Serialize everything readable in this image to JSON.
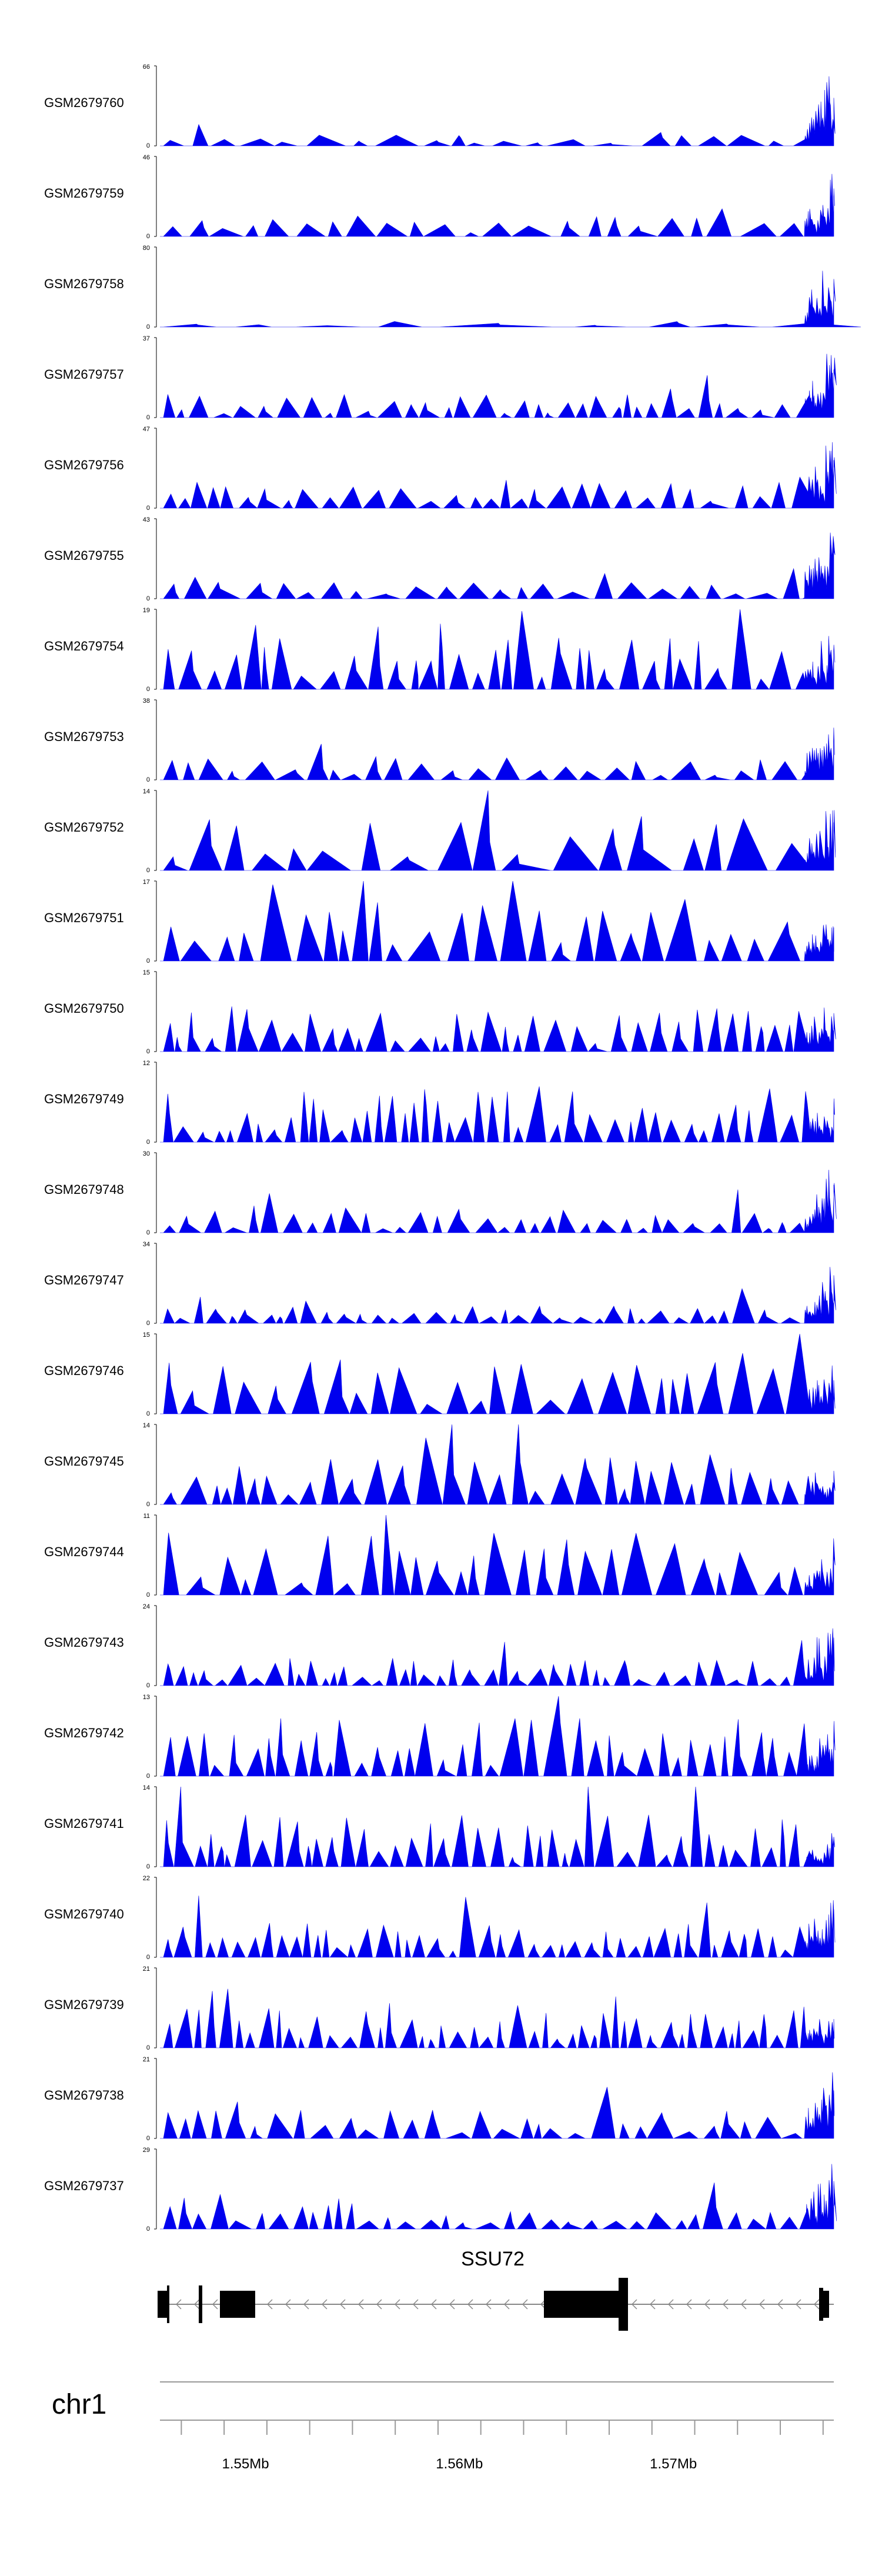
{
  "chart_data": {
    "type": "area",
    "fill_color": "#0000ee",
    "x_range": [
      1546000,
      1577500
    ],
    "tracks": [
      {
        "name": "GSM2679760",
        "ymax": "66",
        "ymin": "0",
        "peak": 66,
        "seed": 11,
        "density": 18,
        "tail": 1.0,
        "base": 0.12
      },
      {
        "name": "GSM2679759",
        "ymax": "46",
        "ymin": "0",
        "peak": 46,
        "seed": 23,
        "density": 20,
        "tail": 1.0,
        "base": 0.18
      },
      {
        "name": "GSM2679758",
        "ymax": "80",
        "ymin": "0",
        "peak": 80,
        "seed": 31,
        "density": 7,
        "tail": 1.0,
        "base": 0.05
      },
      {
        "name": "GSM2679757",
        "ymax": "37",
        "ymin": "0",
        "peak": 37,
        "seed": 41,
        "density": 32,
        "tail": 1.0,
        "base": 0.2
      },
      {
        "name": "GSM2679756",
        "ymax": "47",
        "ymin": "0",
        "peak": 47,
        "seed": 53,
        "density": 28,
        "tail": 1.0,
        "base": 0.25
      },
      {
        "name": "GSM2679755",
        "ymax": "43",
        "ymin": "0",
        "peak": 43,
        "seed": 61,
        "density": 24,
        "tail": 1.0,
        "base": 0.15
      },
      {
        "name": "GSM2679754",
        "ymax": "19",
        "ymin": "0",
        "peak": 19,
        "seed": 71,
        "density": 34,
        "tail": 0.9,
        "base": 0.45
      },
      {
        "name": "GSM2679753",
        "ymax": "38",
        "ymin": "0",
        "peak": 38,
        "seed": 83,
        "density": 26,
        "tail": 1.0,
        "base": 0.2
      },
      {
        "name": "GSM2679752",
        "ymax": "14",
        "ymin": "0",
        "peak": 14,
        "seed": 97,
        "density": 16,
        "tail": 1.0,
        "base": 0.5
      },
      {
        "name": "GSM2679751",
        "ymax": "17",
        "ymin": "0",
        "peak": 17,
        "seed": 101,
        "density": 24,
        "tail": 0.7,
        "base": 0.55
      },
      {
        "name": "GSM2679750",
        "ymax": "15",
        "ymin": "0",
        "peak": 15,
        "seed": 113,
        "density": 36,
        "tail": 0.8,
        "base": 0.4
      },
      {
        "name": "GSM2679749",
        "ymax": "12",
        "ymin": "0",
        "peak": 12,
        "seed": 127,
        "density": 40,
        "tail": 0.6,
        "base": 0.5
      },
      {
        "name": "GSM2679748",
        "ymax": "30",
        "ymin": "0",
        "peak": 30,
        "seed": 131,
        "density": 32,
        "tail": 1.0,
        "base": 0.2
      },
      {
        "name": "GSM2679747",
        "ymax": "34",
        "ymin": "0",
        "peak": 34,
        "seed": 149,
        "density": 36,
        "tail": 1.0,
        "base": 0.15
      },
      {
        "name": "GSM2679746",
        "ymax": "15",
        "ymin": "0",
        "peak": 15,
        "seed": 151,
        "density": 28,
        "tail": 0.7,
        "base": 0.45
      },
      {
        "name": "GSM2679745",
        "ymax": "14",
        "ymin": "0",
        "peak": 14,
        "seed": 163,
        "density": 30,
        "tail": 0.7,
        "base": 0.45
      },
      {
        "name": "GSM2679744",
        "ymax": "11",
        "ymin": "0",
        "peak": 11,
        "seed": 173,
        "density": 26,
        "tail": 0.8,
        "base": 0.55
      },
      {
        "name": "GSM2679743",
        "ymax": "24",
        "ymin": "0",
        "peak": 24,
        "seed": 181,
        "density": 40,
        "tail": 1.0,
        "base": 0.25
      },
      {
        "name": "GSM2679742",
        "ymax": "13",
        "ymin": "0",
        "peak": 13,
        "seed": 191,
        "density": 34,
        "tail": 0.8,
        "base": 0.5
      },
      {
        "name": "GSM2679741",
        "ymax": "14",
        "ymin": "0",
        "peak": 14,
        "seed": 199,
        "density": 40,
        "tail": 0.5,
        "base": 0.45
      },
      {
        "name": "GSM2679740",
        "ymax": "22",
        "ymin": "0",
        "peak": 22,
        "seed": 211,
        "density": 44,
        "tail": 1.0,
        "base": 0.3
      },
      {
        "name": "GSM2679739",
        "ymax": "21",
        "ymin": "0",
        "peak": 21,
        "seed": 223,
        "density": 44,
        "tail": 0.6,
        "base": 0.35
      },
      {
        "name": "GSM2679738",
        "ymax": "21",
        "ymin": "0",
        "peak": 21,
        "seed": 227,
        "density": 30,
        "tail": 1.0,
        "base": 0.25
      },
      {
        "name": "GSM2679737",
        "ymax": "29",
        "ymin": "0",
        "peak": 29,
        "seed": 239,
        "density": 32,
        "tail": 1.0,
        "base": 0.2
      }
    ],
    "gene": {
      "name": "SSU72",
      "strand": "-"
    },
    "chromosome": "chr1",
    "axis_ticks": [
      "1.55Mb",
      "1.56Mb",
      "1.57Mb"
    ]
  }
}
